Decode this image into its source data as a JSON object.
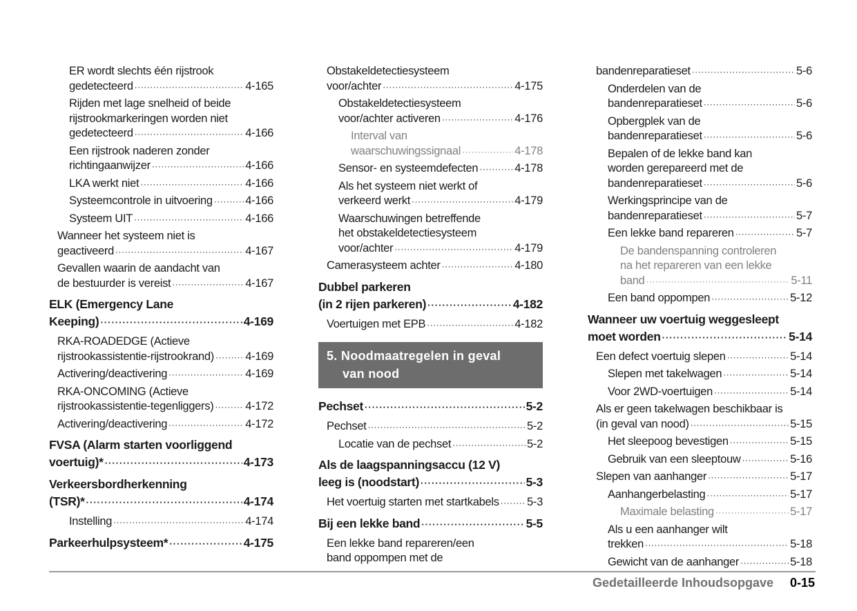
{
  "columns": [
    {
      "entries": [
        {
          "style": "sub2",
          "lines": [
            "ER wordt slechts één rijstrook",
            "gedetecteerd"
          ],
          "page": "4-165"
        },
        {
          "style": "sub2",
          "lines": [
            "Rijden met lage snelheid of beide",
            "rijstrookmarkeringen worden niet",
            "gedetecteerd"
          ],
          "page": "4-166"
        },
        {
          "style": "sub2",
          "lines": [
            "Een rijstrook naderen zonder",
            "richtingaanwijzer"
          ],
          "page": "4-166"
        },
        {
          "style": "sub2",
          "lines": [
            "LKA werkt niet"
          ],
          "page": "4-166"
        },
        {
          "style": "sub2",
          "lines": [
            "Systeemcontrole in uitvoering"
          ],
          "page": "4-166"
        },
        {
          "style": "sub2",
          "lines": [
            "Systeem UIT"
          ],
          "page": "4-166"
        },
        {
          "style": "sub1",
          "lines": [
            "Wanneer het systeem niet is",
            "geactiveerd"
          ],
          "page": "4-167"
        },
        {
          "style": "sub1",
          "lines": [
            "Gevallen waarin de aandacht van",
            "de bestuurder is vereist"
          ],
          "page": "4-167"
        },
        {
          "style": "heading",
          "lines": [
            "ELK (Emergency Lane",
            "Keeping)"
          ],
          "page": "4-169"
        },
        {
          "style": "sub1",
          "lines": [
            "RKA-ROADEDGE (Actieve",
            "rijstrookassistentie-rijstrookrand)"
          ],
          "page": "4-169"
        },
        {
          "style": "sub1",
          "lines": [
            "Activering/deactivering"
          ],
          "page": "4-169"
        },
        {
          "style": "sub1",
          "lines": [
            "RKA-ONCOMING (Actieve",
            "rijstrookassistentie-tegenliggers)"
          ],
          "page": "4-172"
        },
        {
          "style": "sub1",
          "lines": [
            "Activering/deactivering"
          ],
          "page": "4-172"
        },
        {
          "style": "heading",
          "lines": [
            "FVSA (Alarm starten voorliggend",
            "voertuig)*"
          ],
          "page": "4-173"
        },
        {
          "style": "heading",
          "lines": [
            "Verkeersbordherkenning",
            "(TSR)*"
          ],
          "page": "4-174"
        },
        {
          "style": "sub2",
          "lines": [
            "Instelling"
          ],
          "page": "4-174"
        },
        {
          "style": "heading",
          "lines": [
            "Parkeerhulpsysteem*"
          ],
          "page": "4-175"
        }
      ]
    },
    {
      "entries": [
        {
          "style": "sub1",
          "lines": [
            "Obstakeldetectiesysteem",
            "voor/achter"
          ],
          "page": "4-175"
        },
        {
          "style": "sub2",
          "lines": [
            "Obstakeldetectiesysteem",
            "voor/achter activeren"
          ],
          "page": "4-176"
        },
        {
          "style": "sub3",
          "lines": [
            "Interval van",
            "waarschuwingssignaal"
          ],
          "page": "4-178"
        },
        {
          "style": "sub2",
          "lines": [
            "Sensor- en systeemdefecten"
          ],
          "page": "4-178"
        },
        {
          "style": "sub2",
          "lines": [
            "Als het systeem niet werkt of",
            "verkeerd werkt"
          ],
          "page": "4-179"
        },
        {
          "style": "sub2",
          "lines": [
            "Waarschuwingen betreffende",
            "het obstakeldetectiesysteem",
            "voor/achter"
          ],
          "page": "4-179"
        },
        {
          "style": "sub1",
          "lines": [
            "Camerasysteem achter"
          ],
          "page": "4-180"
        },
        {
          "style": "heading",
          "lines": [
            "Dubbel parkeren",
            "(in 2 rijen parkeren)"
          ],
          "page": "4-182"
        },
        {
          "style": "sub1",
          "lines": [
            "Voertuigen met EPB"
          ],
          "page": "4-182"
        },
        {
          "style": "chapter",
          "lines": [
            "5. Noodmaatregelen in geval",
            "van nood"
          ]
        },
        {
          "style": "heading",
          "lines": [
            "Pechset"
          ],
          "page": "5-2"
        },
        {
          "style": "sub1",
          "lines": [
            "Pechset"
          ],
          "page": "5-2"
        },
        {
          "style": "sub2",
          "lines": [
            "Locatie van de pechset"
          ],
          "page": "5-2"
        },
        {
          "style": "heading",
          "lines": [
            "Als de laagspanningsaccu (12 V)",
            "leeg is (noodstart)"
          ],
          "page": "5-3"
        },
        {
          "style": "sub1",
          "lines": [
            "Het voertuig starten met startkabels"
          ],
          "page": "5-3"
        },
        {
          "style": "heading",
          "lines": [
            "Bij een lekke band"
          ],
          "page": "5-5"
        },
        {
          "style": "sub1",
          "lines": [
            "Een lekke band repareren/een",
            "band oppompen met de"
          ]
        }
      ]
    },
    {
      "entries": [
        {
          "style": "sub1",
          "lines": [
            "bandenreparatieset"
          ],
          "page": "5-6"
        },
        {
          "style": "sub2",
          "lines": [
            "Onderdelen van de",
            "bandenreparatieset"
          ],
          "page": "5-6"
        },
        {
          "style": "sub2",
          "lines": [
            "Opbergplek van de",
            "bandenreparatieset"
          ],
          "page": "5-6"
        },
        {
          "style": "sub2",
          "lines": [
            "Bepalen of de lekke band kan",
            "worden gerepareerd met de",
            "bandenreparatieset"
          ],
          "page": "5-6"
        },
        {
          "style": "sub2",
          "lines": [
            "Werkingsprincipe van de",
            "bandenreparatieset"
          ],
          "page": "5-7"
        },
        {
          "style": "sub2",
          "lines": [
            "Een lekke band repareren"
          ],
          "page": "5-7"
        },
        {
          "style": "sub3",
          "lines": [
            "De bandenspanning controleren",
            "na het repareren van een lekke",
            "band"
          ],
          "page": "5-11"
        },
        {
          "style": "sub2",
          "lines": [
            "Een band oppompen"
          ],
          "page": "5-12"
        },
        {
          "style": "heading",
          "lines": [
            "Wanneer uw voertuig weggesleept",
            "moet worden"
          ],
          "page": "5-14"
        },
        {
          "style": "sub1",
          "lines": [
            "Een defect voertuig slepen"
          ],
          "page": "5-14"
        },
        {
          "style": "sub2",
          "lines": [
            "Slepen met takelwagen"
          ],
          "page": "5-14"
        },
        {
          "style": "sub2",
          "lines": [
            "Voor 2WD-voertuigen"
          ],
          "page": "5-14"
        },
        {
          "style": "sub1",
          "lines": [
            "Als er geen takelwagen beschikbaar is",
            "(in geval van nood)"
          ],
          "page": "5-15"
        },
        {
          "style": "sub2",
          "lines": [
            "Het sleepoog bevestigen"
          ],
          "page": "5-15"
        },
        {
          "style": "sub2",
          "lines": [
            "Gebruik van een sleeptouw"
          ],
          "page": "5-16"
        },
        {
          "style": "sub1",
          "lines": [
            "Slepen van aanhanger"
          ],
          "page": "5-17"
        },
        {
          "style": "sub2",
          "lines": [
            "Aanhangerbelasting"
          ],
          "page": "5-17"
        },
        {
          "style": "sub3",
          "lines": [
            "Maximale belasting"
          ],
          "page": "5-17"
        },
        {
          "style": "sub2",
          "lines": [
            "Als u een aanhanger wilt",
            "trekken"
          ],
          "page": "5-18"
        },
        {
          "style": "sub2",
          "lines": [
            "Gewicht van de aanhanger"
          ],
          "page": "5-18"
        }
      ]
    }
  ],
  "footer": {
    "title": "Gedetailleerde Inhoudsopgave",
    "page": "0-15"
  }
}
